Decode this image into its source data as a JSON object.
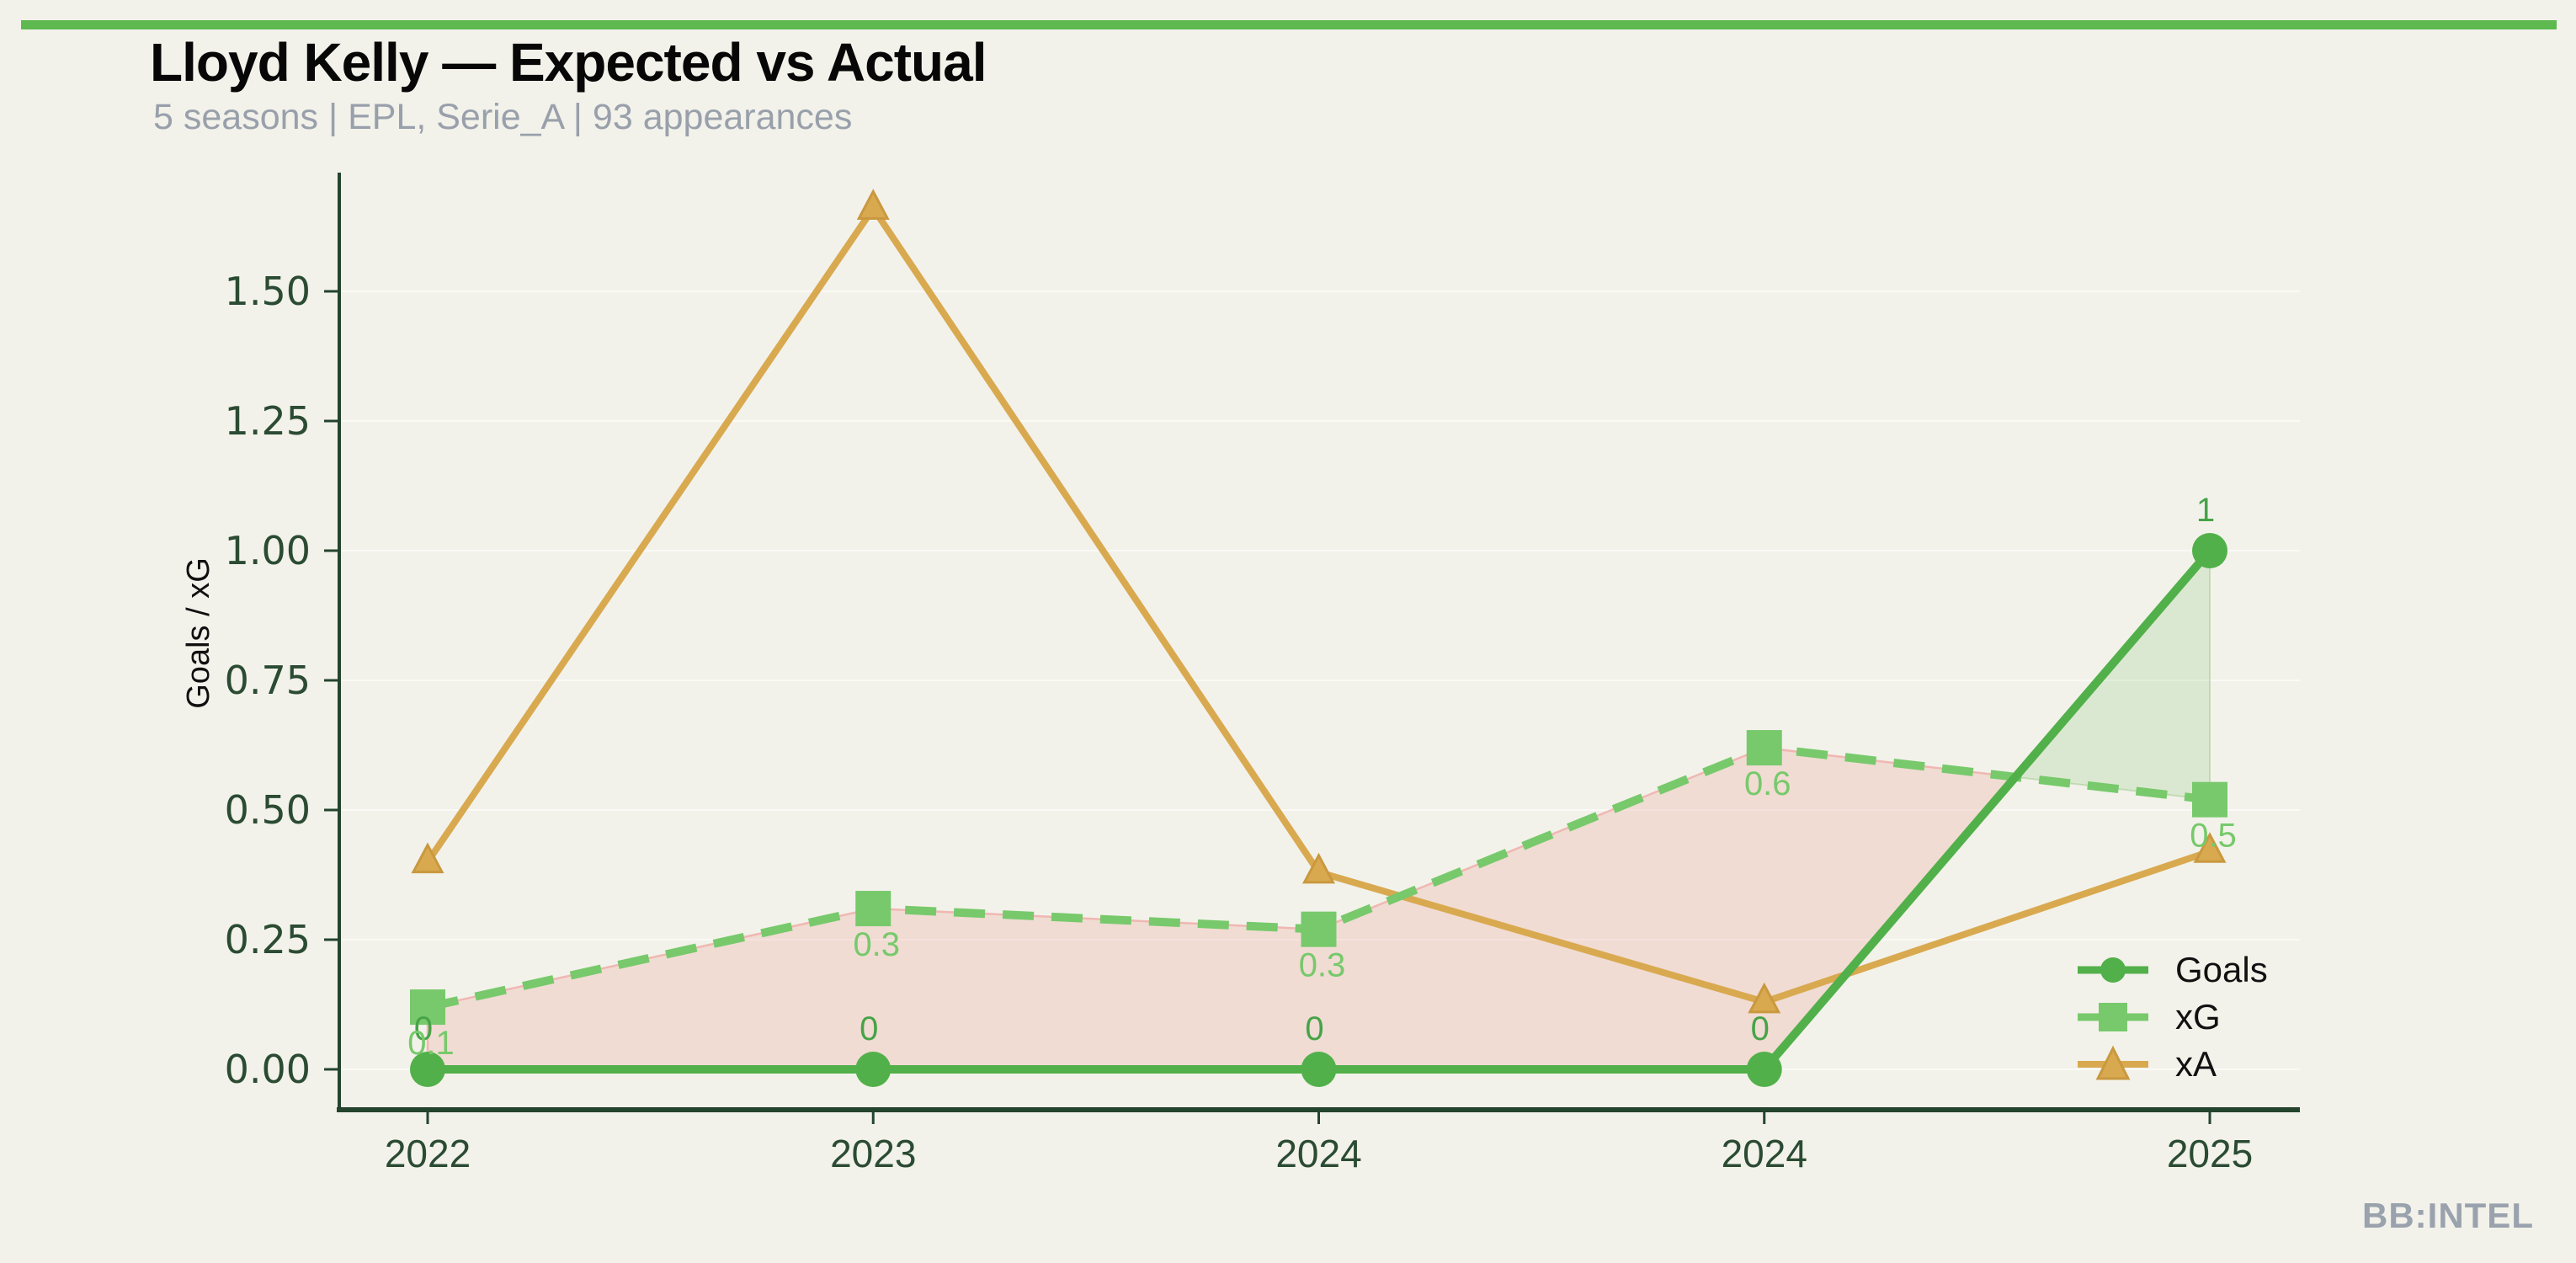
{
  "page": {
    "background": "#f2f2ea",
    "accent_bar_color": "#5db950",
    "watermark": "BB:INTEL"
  },
  "header": {
    "title": "Lloyd Kelly — Expected vs Actual",
    "subtitle": "5 seasons | EPL, Serie_A | 93 appearances"
  },
  "chart_data": {
    "type": "line",
    "title": "Lloyd Kelly — Expected vs Actual",
    "subtitle": "5 seasons | EPL, Serie_A | 93 appearances",
    "categories": [
      "2022",
      "2023",
      "2024",
      "2024",
      "2025"
    ],
    "series": [
      {
        "name": "Goals",
        "color": "#52b04a",
        "label_color": "#46a347",
        "marker": "circle",
        "style": "solid",
        "values": [
          0,
          0,
          0,
          0,
          1
        ],
        "labels": [
          "0",
          "0",
          "0",
          "0",
          "1"
        ]
      },
      {
        "name": "xG",
        "color": "#77c96b",
        "label_color": "#77c96b",
        "marker": "square",
        "style": "dashed",
        "values": [
          0.12,
          0.31,
          0.27,
          0.62,
          0.52
        ],
        "labels": [
          "0.1",
          "0.3",
          "0.3",
          "0.6",
          "0.5"
        ]
      },
      {
        "name": "xA",
        "color": "#d9a950",
        "marker_stroke": "#c9983f",
        "marker": "triangle",
        "style": "solid",
        "values": [
          0.4,
          1.66,
          0.38,
          0.13,
          0.42
        ],
        "labels": []
      }
    ],
    "xlabel": "",
    "ylabel": "Goals / xG",
    "yticks": [
      0,
      0.25,
      0.5,
      0.75,
      1.0,
      1.25,
      1.5
    ],
    "ytick_labels": [
      "0.00",
      "0.25",
      "0.50",
      "0.75",
      "1.00",
      "1.25",
      "1.50"
    ],
    "ylim": [
      0,
      1.73
    ],
    "grid": true,
    "axis_color": "#24442d",
    "tick_label_color": "#2b4b33",
    "fill_over_color": "rgba(233,140,130,0.22)",
    "fill_over_stroke": "rgba(240,175,170,0.85)",
    "fill_under_color": "rgba(130,195,110,0.20)",
    "legend": {
      "position": "lower right",
      "entries": [
        "Goals",
        "xG",
        "xA"
      ]
    }
  }
}
